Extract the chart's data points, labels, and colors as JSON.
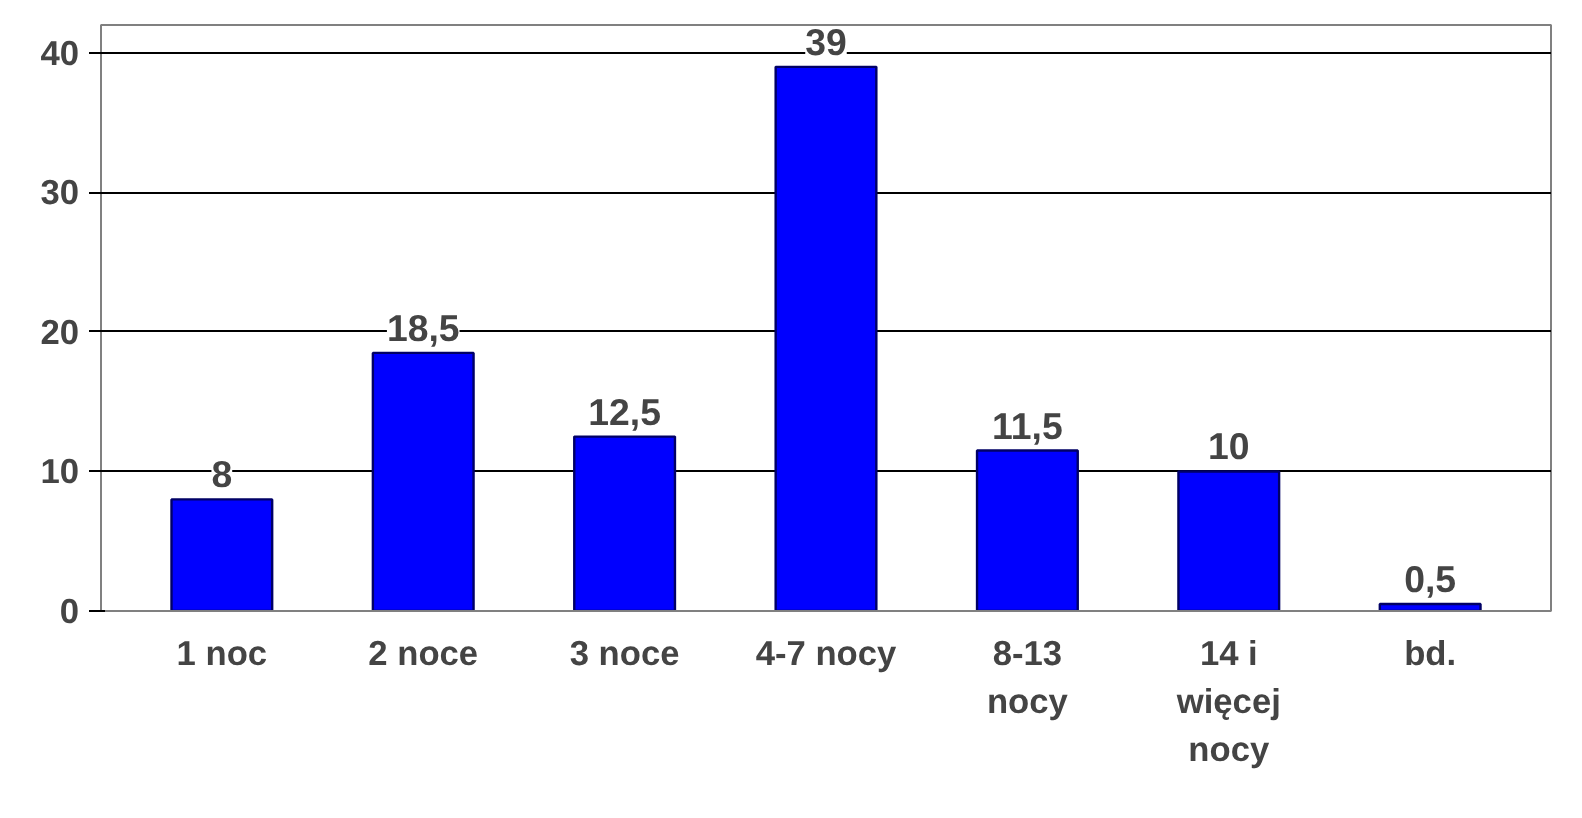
{
  "chart_data": {
    "type": "bar",
    "categories": [
      "1 noc",
      "2 noce",
      "3 noce",
      "4-7 nocy",
      "8-13 nocy",
      "14 i więcej nocy",
      "bd."
    ],
    "values": [
      8,
      18.5,
      12.5,
      39,
      11.5,
      10,
      0.5
    ],
    "value_labels": [
      "8",
      "18,5",
      "12,5",
      "39",
      "11,5",
      "10",
      "0,5"
    ],
    "color": "#0000ff",
    "ylim": [
      0,
      42
    ],
    "yticks": [
      0,
      10,
      20,
      30,
      40
    ],
    "grid": "y"
  }
}
